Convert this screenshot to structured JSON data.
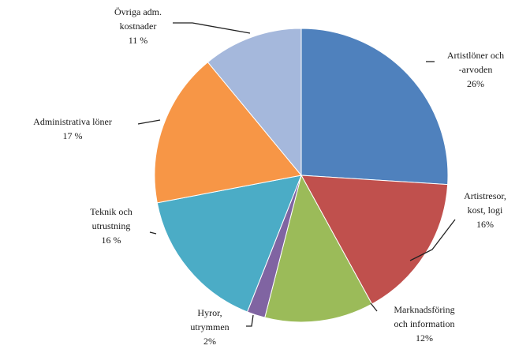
{
  "chart_data": {
    "type": "pie",
    "series": [
      {
        "label_lines": [
          "Artistlöner och",
          "-arvoden"
        ],
        "value_text": "26%",
        "value": 26,
        "color": "#4f81bd"
      },
      {
        "label_lines": [
          "Artistresor,",
          "kost, logi"
        ],
        "value_text": "16%",
        "value": 16,
        "color": "#c0504d"
      },
      {
        "label_lines": [
          "Marknadsföring",
          "och information"
        ],
        "value_text": "12%",
        "value": 12,
        "color": "#9bbb59"
      },
      {
        "label_lines": [
          "Hyror,",
          "utrymmen"
        ],
        "value_text": "2%",
        "value": 2,
        "color": "#8064a2"
      },
      {
        "label_lines": [
          "Teknik och",
          "utrustning"
        ],
        "value_text": "16 %",
        "value": 16,
        "color": "#4bacc6"
      },
      {
        "label_lines": [
          "Administrativa löner"
        ],
        "value_text": "17 %",
        "value": 17,
        "color": "#f79646"
      },
      {
        "label_lines": [
          "Övriga adm.",
          "kostnader"
        ],
        "value_text": "11 %",
        "value": 11,
        "color": "#a5b8dc"
      }
    ]
  }
}
